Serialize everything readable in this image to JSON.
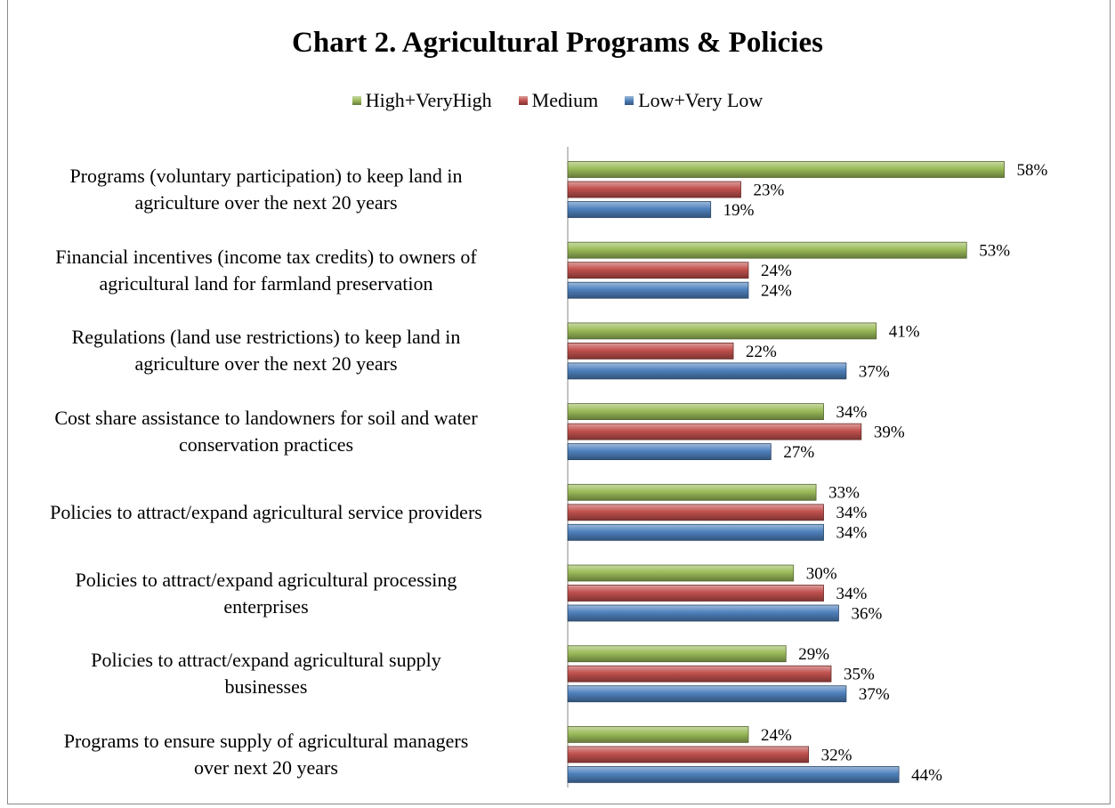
{
  "chart_data": {
    "type": "bar",
    "orientation": "horizontal",
    "title": "Chart 2. Agricultural Programs & Policies",
    "categories": [
      "Programs (voluntary participation) to keep land in\nagriculture over the next 20 years",
      "Financial incentives (income tax credits) to owners of\nagricultural land for farmland preservation",
      "Regulations (land use restrictions) to keep land in\nagriculture over the next 20 years",
      "Cost share assistance to landowners for soil and water\nconservation practices",
      "Policies to attract/expand agricultural service providers",
      "Policies to attract/expand agricultural processing\nenterprises",
      "Policies to attract/expand agricultural supply\nbusinesses",
      "Programs to ensure supply of agricultural managers\nover next 20 years"
    ],
    "series": [
      {
        "name": "High+VeryHigh",
        "color": "#9bbb59",
        "values": [
          58,
          53,
          41,
          34,
          33,
          30,
          29,
          24
        ],
        "value_labels": [
          "58%",
          "53%",
          "41%",
          "34%",
          "33%",
          "30%",
          "29%",
          "24%"
        ]
      },
      {
        "name": "Medium",
        "color": "#c0504d",
        "values": [
          23,
          24,
          22,
          39,
          34,
          34,
          35,
          32
        ],
        "value_labels": [
          "23%",
          "24%",
          "22%",
          "39%",
          "34%",
          "34%",
          "35%",
          "32%"
        ]
      },
      {
        "name": "Low+Very Low",
        "color": "#4f81bd",
        "values": [
          19,
          24,
          37,
          27,
          34,
          36,
          37,
          44
        ],
        "value_labels": [
          "19%",
          "24%",
          "37%",
          "27%",
          "34%",
          "36%",
          "37%",
          "44%"
        ]
      }
    ],
    "xlim": [
      0,
      70
    ],
    "legend": "top",
    "grid": false
  }
}
